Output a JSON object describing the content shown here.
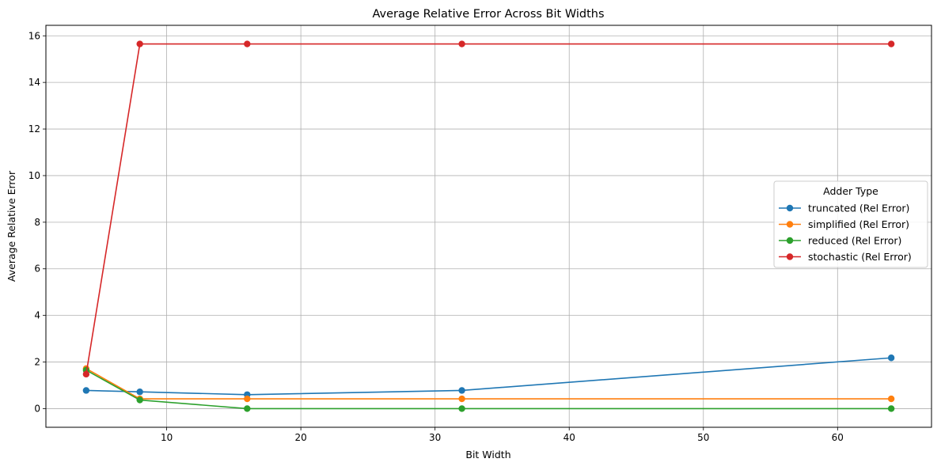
{
  "chart_data": {
    "type": "line",
    "title": "Average Relative Error Across Bit Widths",
    "xlabel": "Bit Width",
    "ylabel": "Average Relative Error",
    "xlim": [
      1.0,
      67.0
    ],
    "ylim": [
      -0.8,
      16.45
    ],
    "xticks": [
      10,
      20,
      30,
      40,
      50,
      60
    ],
    "yticks": [
      0,
      2,
      4,
      6,
      8,
      10,
      12,
      14,
      16
    ],
    "grid": true,
    "legend": {
      "title": "Adder Type",
      "placement": "center-right"
    },
    "x": [
      4,
      8,
      16,
      32,
      64
    ],
    "series": [
      {
        "name": "truncated (Rel Error)",
        "color": "#1f77b4",
        "values": [
          0.78,
          0.72,
          0.6,
          0.78,
          2.18
        ]
      },
      {
        "name": "simplified (Rel Error)",
        "color": "#ff7f0e",
        "values": [
          1.72,
          0.42,
          0.42,
          0.42,
          0.42
        ]
      },
      {
        "name": "reduced (Rel Error)",
        "color": "#2ca02c",
        "values": [
          1.65,
          0.37,
          0.0,
          0.0,
          0.0
        ]
      },
      {
        "name": "stochastic (Rel Error)",
        "color": "#d62728",
        "values": [
          1.48,
          15.65,
          15.65,
          15.65,
          15.65
        ]
      }
    ]
  }
}
